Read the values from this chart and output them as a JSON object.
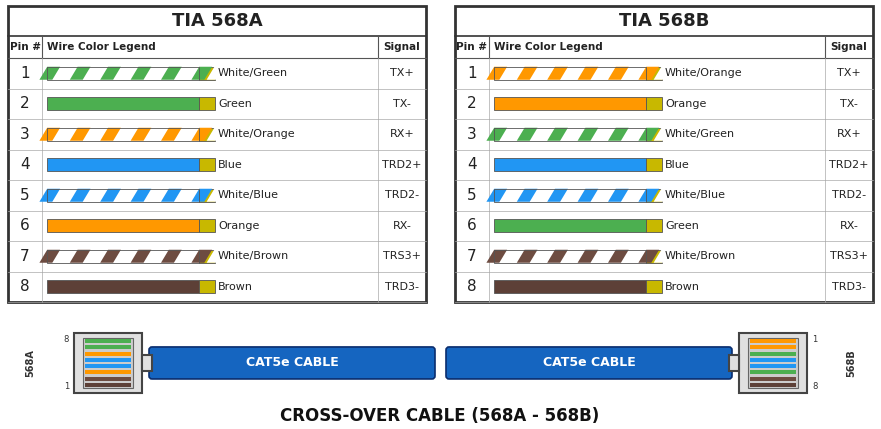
{
  "title_568A": "TIA 568A",
  "title_568B": "TIA 568B",
  "568A": [
    {
      "pin": 1,
      "name": "White/Green",
      "signal": "TX+",
      "solid_color": "#4CAF50",
      "striped": true
    },
    {
      "pin": 2,
      "name": "Green",
      "signal": "TX-",
      "solid_color": "#4CAF50",
      "striped": false
    },
    {
      "pin": 3,
      "name": "White/Orange",
      "signal": "RX+",
      "solid_color": "#FF9800",
      "striped": true
    },
    {
      "pin": 4,
      "name": "Blue",
      "signal": "TRD2+",
      "solid_color": "#2196F3",
      "striped": false
    },
    {
      "pin": 5,
      "name": "White/Blue",
      "signal": "TRD2-",
      "solid_color": "#2196F3",
      "striped": true
    },
    {
      "pin": 6,
      "name": "Orange",
      "signal": "RX-",
      "solid_color": "#FF9800",
      "striped": false
    },
    {
      "pin": 7,
      "name": "White/Brown",
      "signal": "TRS3+",
      "solid_color": "#6D4C41",
      "striped": true
    },
    {
      "pin": 8,
      "name": "Brown",
      "signal": "TRD3-",
      "solid_color": "#5D4037",
      "striped": false
    }
  ],
  "568B": [
    {
      "pin": 1,
      "name": "White/Orange",
      "signal": "TX+",
      "solid_color": "#FF9800",
      "striped": true
    },
    {
      "pin": 2,
      "name": "Orange",
      "signal": "TX-",
      "solid_color": "#FF9800",
      "striped": false
    },
    {
      "pin": 3,
      "name": "White/Green",
      "signal": "RX+",
      "solid_color": "#4CAF50",
      "striped": true
    },
    {
      "pin": 4,
      "name": "Blue",
      "signal": "TRD2+",
      "solid_color": "#2196F3",
      "striped": false
    },
    {
      "pin": 5,
      "name": "White/Blue",
      "signal": "TRD2-",
      "solid_color": "#2196F3",
      "striped": true
    },
    {
      "pin": 6,
      "name": "Green",
      "signal": "RX-",
      "solid_color": "#4CAF50",
      "striped": false
    },
    {
      "pin": 7,
      "name": "White/Brown",
      "signal": "TRS3+",
      "solid_color": "#6D4C41",
      "striped": true
    },
    {
      "pin": 8,
      "name": "Brown",
      "signal": "TRD3-",
      "solid_color": "#5D4037",
      "striped": false
    }
  ],
  "tip_color": "#C8B800",
  "cable_color": "#1565C0",
  "cable_label": "CAT5e CABLE",
  "crossover_label": "CROSS-OVER CABLE (568A - 568B)",
  "bg_color": "#ffffff",
  "connector_colors_A": [
    "#4CAF50",
    "#4CAF50",
    "#FF9800",
    "#2196F3",
    "#2196F3",
    "#FF9800",
    "#6D4C41",
    "#5D4037"
  ],
  "connector_colors_B": [
    "#FF9800",
    "#FF9800",
    "#4CAF50",
    "#2196F3",
    "#2196F3",
    "#4CAF50",
    "#6D4C41",
    "#5D4037"
  ]
}
